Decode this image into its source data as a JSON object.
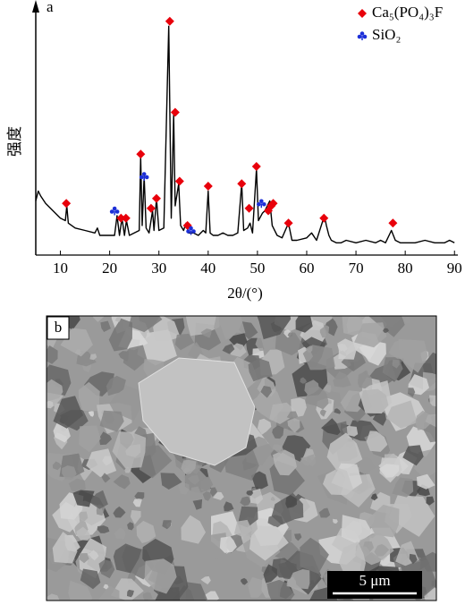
{
  "chart_data": {
    "type": "line",
    "panel_label": "a",
    "xlabel": "2θ/(°)",
    "ylabel": "强度",
    "color": "#000000",
    "xlim": [
      5,
      90.5
    ],
    "xticks": [
      10,
      20,
      30,
      40,
      50,
      60,
      70,
      80,
      90
    ],
    "ylim": [
      0,
      100
    ],
    "x": [
      5,
      5.5,
      6,
      7,
      8,
      9,
      10,
      11,
      11.3,
      11.6,
      13,
      15,
      17,
      17.5,
      18,
      20,
      21,
      21.5,
      22,
      22.5,
      23,
      23.4,
      24,
      25,
      26,
      26.3,
      26.6,
      27,
      27.4,
      28,
      28.7,
      29,
      29.5,
      30,
      31,
      32,
      32.5,
      33,
      33.3,
      34,
      34.4,
      35,
      35.5,
      36,
      37,
      38,
      39,
      39.5,
      40,
      40.4,
      41,
      42,
      43,
      44,
      45,
      46,
      46.8,
      47.2,
      48,
      48.5,
      49,
      49.8,
      50.2,
      51,
      51.5,
      52,
      52.5,
      53,
      54,
      55,
      56.3,
      57,
      58,
      60,
      61,
      62,
      63.6,
      64,
      64.5,
      65,
      66,
      67,
      68,
      70,
      72,
      74,
      75,
      76,
      77.2,
      78,
      79,
      80,
      82,
      84,
      86,
      88,
      89,
      90
    ],
    "values": [
      22,
      26,
      24,
      21,
      19,
      17,
      15,
      14,
      20,
      13,
      11,
      10,
      9,
      11,
      8,
      8,
      8,
      16,
      8,
      15,
      8,
      14,
      8,
      9,
      10,
      40,
      12,
      32,
      11,
      9,
      18,
      10,
      23,
      10,
      11,
      93,
      15,
      57,
      20,
      29,
      12,
      10,
      13,
      9,
      9,
      8,
      10,
      9,
      26,
      9,
      8,
      8,
      9,
      8,
      8,
      9,
      29,
      10,
      11,
      13,
      9,
      35,
      14,
      17,
      18,
      20,
      22,
      12,
      8,
      7,
      13,
      6,
      6,
      7,
      9,
      6,
      16,
      12,
      8,
      6,
      5,
      5,
      6,
      5,
      6,
      5,
      6,
      5,
      10,
      6,
      5,
      5,
      5,
      6,
      5,
      5,
      6,
      5
    ],
    "series": [
      {
        "name": "Ca₅(PO₄)₃F",
        "color": "#e8000b",
        "marker": "diamond",
        "x": [
          11.2,
          22.3,
          23.3,
          26.3,
          28.4,
          29.5,
          32.2,
          33.3,
          34.2,
          35.8,
          40,
          46.8,
          48.3,
          49.8,
          52.2,
          52.8,
          53.2,
          56.3,
          63.5,
          77.5
        ],
        "values": [
          21,
          15,
          15,
          41,
          19,
          23,
          95,
          58,
          30,
          12,
          28,
          29,
          19,
          36,
          18,
          20,
          21,
          13,
          15,
          13
        ]
      },
      {
        "name": "SiO₂",
        "color": "#1c2fd8",
        "marker": "club",
        "x": [
          21,
          27,
          36.5,
          50.8
        ],
        "values": [
          18,
          32,
          10,
          21
        ]
      }
    ]
  },
  "panel_b": {
    "label": "b",
    "scale_bar": "5 μm"
  }
}
